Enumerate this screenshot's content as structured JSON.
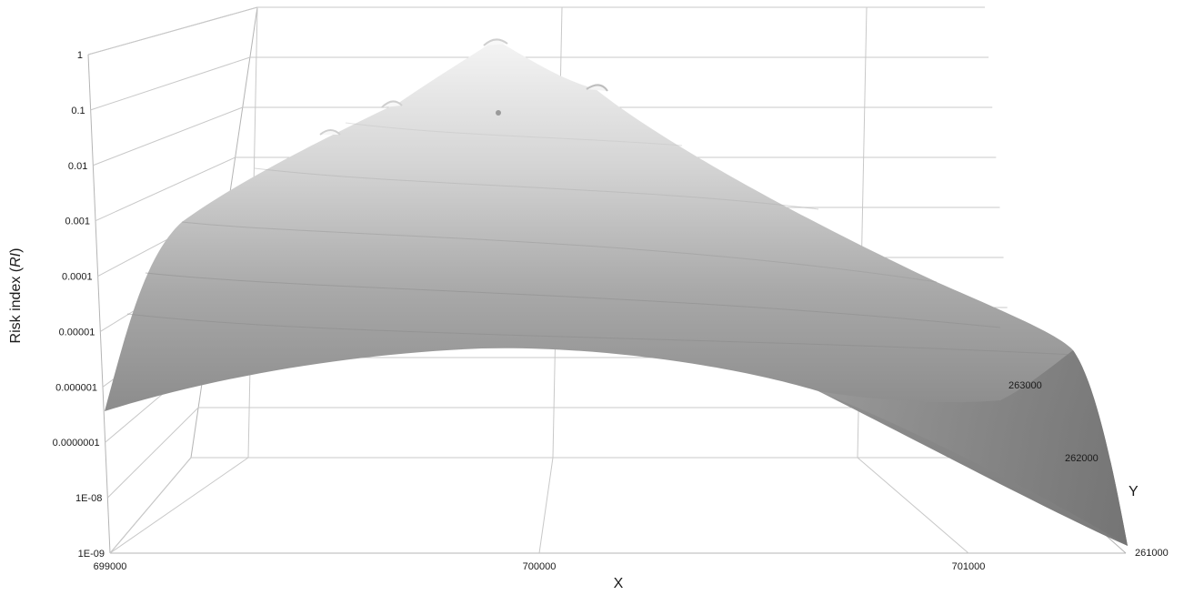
{
  "chart_data": {
    "type": "surface",
    "xlabel": "X",
    "ylabel": "Y",
    "zlabel_main": "Risk index (",
    "zlabel_italic": "RI",
    "zlabel_end": ")",
    "x_ticks": [
      "699000",
      "700000",
      "701000"
    ],
    "y_ticks": [
      "261000",
      "262000",
      "263000"
    ],
    "z_ticks": [
      "1E-09",
      "1E-08",
      "0.0000001",
      "0.000001",
      "0.00001",
      "0.0001",
      "0.001",
      "0.01",
      "0.1",
      "1"
    ],
    "z_scale": "log",
    "xlim": [
      699000,
      701400
    ],
    "ylim": [
      261000,
      264000
    ],
    "zlim": [
      1e-09,
      1
    ],
    "peak": {
      "x": 699950,
      "y": 263300,
      "z": 1
    },
    "secondary_peaks": [
      {
        "x": 699500,
        "y": 263100,
        "z": 0.1
      },
      {
        "x": 700300,
        "y": 263300,
        "z": 0.1
      },
      {
        "x": 699900,
        "y": 263600,
        "z": 0.1
      },
      {
        "x": 699200,
        "y": 263000,
        "z": 0.01
      }
    ],
    "grid": true,
    "colors": {
      "surface_light": "#f2f2f2",
      "surface_dark": "#6e6e6e",
      "gridline": "#c8c8c8"
    }
  }
}
